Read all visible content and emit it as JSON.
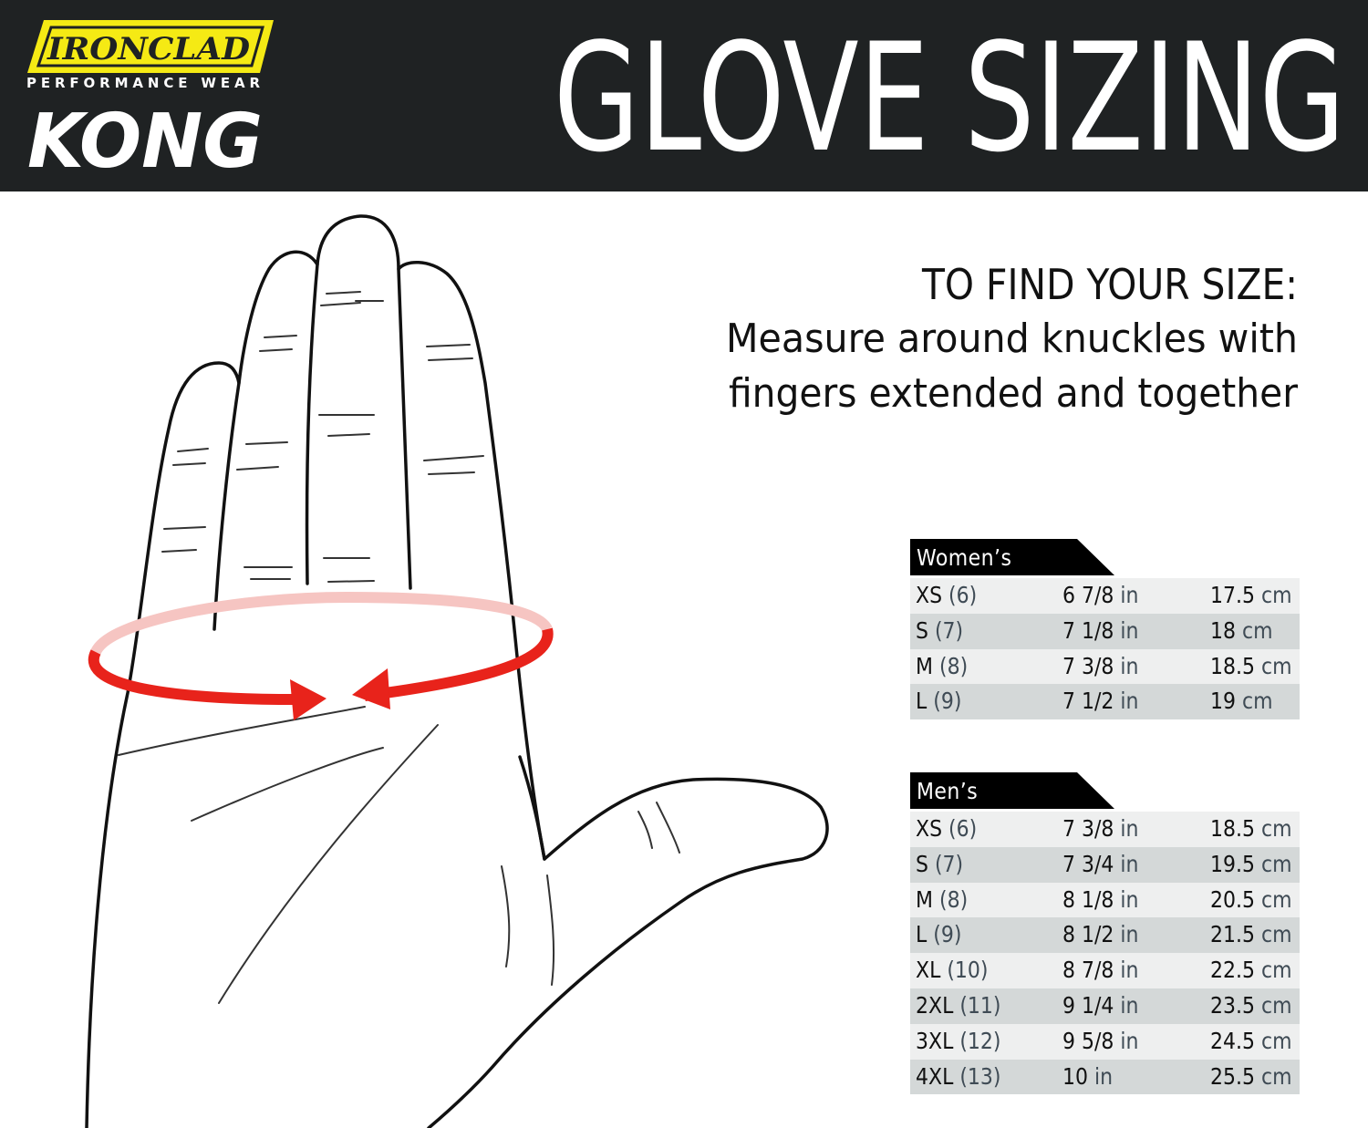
{
  "brand": {
    "logo_text": "IRONCLAD",
    "tagline": "PERFORMANCE WEAR",
    "product": "KONG",
    "logo_yellow": "#f5ea14"
  },
  "title": "GLOVE SIZING",
  "instructions": {
    "heading": "TO FIND YOUR SIZE:",
    "line1": "Measure around knuckles with",
    "line2": "fingers extended and together"
  },
  "colors": {
    "header_bg": "#1f2223",
    "measure_ring": "#e8231b"
  },
  "womens": {
    "label": "Women’s",
    "rows": [
      {
        "size": "XS",
        "num": "(6)",
        "inches": "6 7/8",
        "in_unit": "in",
        "cm": "17.5",
        "cm_unit": "cm"
      },
      {
        "size": "S",
        "num": "(7)",
        "inches": "7 1/8",
        "in_unit": "in",
        "cm": "18",
        "cm_unit": "cm"
      },
      {
        "size": "M",
        "num": "(8)",
        "inches": "7 3/8",
        "in_unit": "in",
        "cm": "18.5",
        "cm_unit": "cm"
      },
      {
        "size": "L",
        "num": "(9)",
        "inches": "7 1/2",
        "in_unit": "in",
        "cm": "19",
        "cm_unit": "cm"
      }
    ]
  },
  "mens": {
    "label": "Men’s",
    "rows": [
      {
        "size": "XS",
        "num": "(6)",
        "inches": "7 3/8",
        "in_unit": "in",
        "cm": "18.5",
        "cm_unit": "cm"
      },
      {
        "size": "S",
        "num": "(7)",
        "inches": "7 3/4",
        "in_unit": "in",
        "cm": "19.5",
        "cm_unit": "cm"
      },
      {
        "size": "M",
        "num": "(8)",
        "inches": "8 1/8",
        "in_unit": "in",
        "cm": "20.5",
        "cm_unit": "cm"
      },
      {
        "size": "L",
        "num": "(9)",
        "inches": "8 1/2",
        "in_unit": "in",
        "cm": "21.5",
        "cm_unit": "cm"
      },
      {
        "size": "XL",
        "num": "(10)",
        "inches": "8 7/8",
        "in_unit": "in",
        "cm": "22.5",
        "cm_unit": "cm"
      },
      {
        "size": "2XL",
        "num": "(11)",
        "inches": "9 1/4",
        "in_unit": "in",
        "cm": "23.5",
        "cm_unit": "cm"
      },
      {
        "size": "3XL",
        "num": "(12)",
        "inches": "9 5/8",
        "in_unit": "in",
        "cm": "24.5",
        "cm_unit": "cm"
      },
      {
        "size": "4XL",
        "num": "(13)",
        "inches": "10",
        "in_unit": "in",
        "cm": "25.5",
        "cm_unit": "cm"
      }
    ]
  }
}
